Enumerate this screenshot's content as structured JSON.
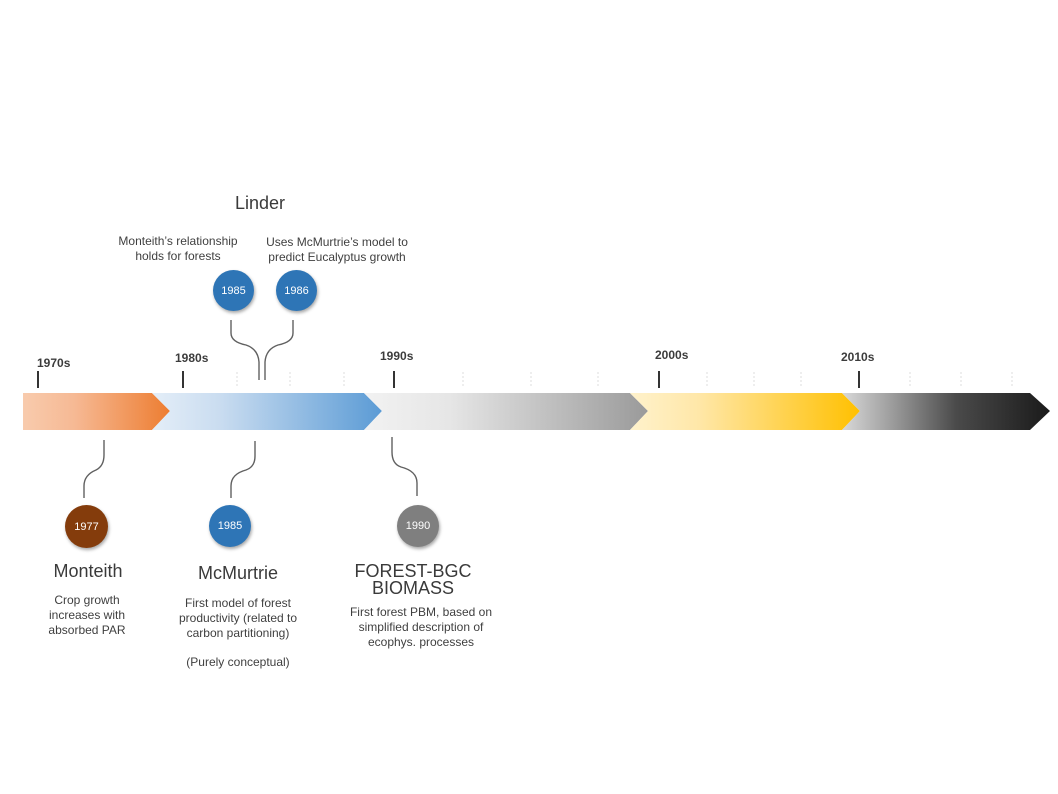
{
  "decades": [
    "1970s",
    "1980s",
    "1990s",
    "2000s",
    "2010s"
  ],
  "colors": {
    "segment_1970s": "#ed7d31",
    "segment_1980s": "#5b9bd5",
    "segment_1990s": "#a5a5a5",
    "segment_2000s": "#ffc000",
    "segment_2010s": "#262626",
    "circle_brown": "#843c0c",
    "circle_blue": "#2e75b6",
    "circle_gray": "#7f7f7f"
  },
  "linder": {
    "title": "Linder",
    "left_desc": [
      "Monteith’s relationship",
      "holds for forests"
    ],
    "right_desc": [
      "Uses McMurtrie’s model to",
      "predict Eucalyptus growth"
    ],
    "year_left": "1985",
    "year_right": "1986"
  },
  "monteith": {
    "year": "1977",
    "title": "Monteith",
    "desc": [
      "Crop growth",
      "increases with",
      "absorbed PAR"
    ]
  },
  "mcmurtrie": {
    "year": "1985",
    "title": "McMurtrie",
    "desc": [
      "First model of forest",
      "productivity (related to",
      "carbon partitioning)"
    ],
    "note": "(Purely conceptual)"
  },
  "forest_bgc": {
    "year": "1990",
    "title_line1": "FOREST-BGC",
    "title_line2": "BIOMASS",
    "desc": [
      "First forest PBM, based on",
      "simplified description of",
      "ecophys. processes"
    ]
  }
}
